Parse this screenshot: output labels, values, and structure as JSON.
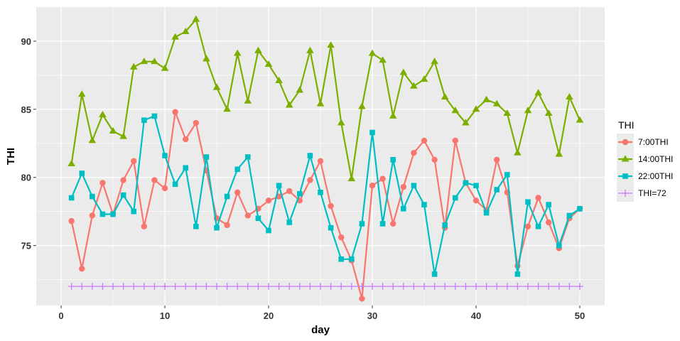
{
  "chart_data": {
    "type": "line",
    "xlabel": "day",
    "ylabel": "THI",
    "xlim": [
      -2.4,
      52.4
    ],
    "ylim": [
      70.6,
      92.5
    ],
    "x_ticks": [
      0,
      10,
      20,
      30,
      40,
      50
    ],
    "y_ticks": [
      75,
      80,
      85,
      90
    ],
    "x_tick_labels": [
      "0",
      "10",
      "20",
      "30",
      "40",
      "50"
    ],
    "y_tick_labels": [
      "75",
      "80",
      "85",
      "90"
    ],
    "grid": true,
    "legend": {
      "title": "THI",
      "position": "right"
    },
    "x": [
      1,
      2,
      3,
      4,
      5,
      6,
      7,
      8,
      9,
      10,
      11,
      12,
      13,
      14,
      15,
      16,
      17,
      18,
      19,
      20,
      21,
      22,
      23,
      24,
      25,
      26,
      27,
      28,
      29,
      30,
      31,
      32,
      33,
      34,
      35,
      36,
      37,
      38,
      39,
      40,
      41,
      42,
      43,
      44,
      45,
      46,
      47,
      48,
      49,
      50
    ],
    "series": [
      {
        "name": "7:00THI",
        "color": "#F8766D",
        "marker": "circle",
        "values": [
          76.8,
          73.3,
          77.2,
          79.6,
          77.3,
          79.8,
          81.2,
          76.4,
          79.8,
          79.2,
          84.8,
          82.8,
          84.0,
          80.5,
          77.0,
          76.5,
          78.9,
          77.2,
          77.7,
          78.3,
          78.6,
          79.0,
          78.3,
          79.8,
          81.2,
          77.9,
          75.6,
          73.9,
          71.1,
          79.4,
          79.9,
          76.6,
          79.3,
          81.8,
          82.7,
          81.3,
          76.3,
          82.7,
          79.6,
          78.3,
          77.6,
          81.3,
          78.9,
          73.5,
          76.4,
          78.5,
          76.7,
          74.8,
          77.0,
          77.7
        ]
      },
      {
        "name": "14:00THI",
        "color": "#7CAE00",
        "marker": "triangle",
        "values": [
          81.0,
          86.1,
          82.7,
          84.6,
          83.4,
          83.0,
          88.1,
          88.5,
          88.5,
          88.0,
          90.3,
          90.7,
          91.6,
          88.7,
          86.6,
          85.0,
          89.1,
          85.6,
          89.3,
          88.3,
          87.1,
          85.3,
          86.4,
          89.3,
          85.4,
          89.7,
          84.0,
          79.9,
          85.2,
          89.1,
          88.6,
          84.5,
          87.7,
          86.7,
          87.2,
          88.5,
          85.9,
          84.9,
          84.0,
          85.0,
          85.7,
          85.4,
          84.7,
          81.8,
          84.9,
          86.2,
          84.7,
          81.7,
          85.9,
          84.2
        ]
      },
      {
        "name": "22:00THI",
        "color": "#00BFC4",
        "marker": "square",
        "values": [
          78.5,
          80.3,
          78.6,
          77.3,
          77.3,
          78.7,
          77.5,
          84.2,
          84.5,
          81.6,
          79.5,
          80.7,
          76.4,
          81.5,
          76.3,
          78.6,
          80.6,
          81.5,
          77.0,
          76.1,
          79.4,
          76.7,
          78.8,
          81.6,
          78.9,
          76.3,
          74.0,
          74.0,
          76.6,
          83.3,
          76.6,
          81.3,
          77.7,
          79.4,
          78.0,
          72.9,
          76.5,
          78.5,
          79.6,
          79.4,
          77.4,
          79.1,
          80.2,
          72.9,
          78.2,
          76.4,
          78.0,
          75.0,
          77.2,
          77.7
        ]
      },
      {
        "name": "THI=72",
        "color": "#C77CFF",
        "marker": "plus",
        "values": [
          72,
          72,
          72,
          72,
          72,
          72,
          72,
          72,
          72,
          72,
          72,
          72,
          72,
          72,
          72,
          72,
          72,
          72,
          72,
          72,
          72,
          72,
          72,
          72,
          72,
          72,
          72,
          72,
          72,
          72,
          72,
          72,
          72,
          72,
          72,
          72,
          72,
          72,
          72,
          72,
          72,
          72,
          72,
          72,
          72,
          72,
          72,
          72,
          72,
          72
        ]
      }
    ]
  }
}
